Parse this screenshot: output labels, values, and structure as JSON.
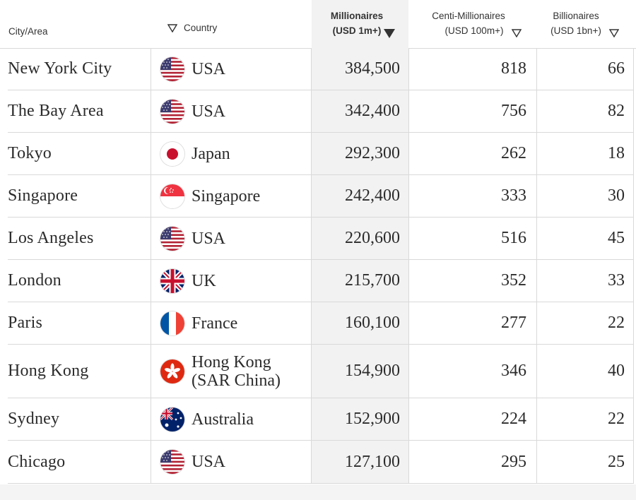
{
  "header": {
    "city_label": "City/Area",
    "country_label": "Country",
    "millionaires_label_1": "Millionaires",
    "millionaires_label_2": "(USD 1m+)",
    "centi_label_1": "Centi-Millionaires",
    "centi_label_2": "(USD 100m+)",
    "billionaires_label_1": "Billionaires",
    "billionaires_label_2": "(USD 1bn+)",
    "sort_column": "Millionaires",
    "sort_direction": "descending"
  },
  "rows": [
    {
      "city": "New York City",
      "country": "USA",
      "flag": "usa-flag-icon",
      "millionaires": "384,500",
      "centi": "818",
      "billionaires": "66"
    },
    {
      "city": "The Bay Area",
      "country": "USA",
      "flag": "usa-flag-icon",
      "millionaires": "342,400",
      "centi": "756",
      "billionaires": "82"
    },
    {
      "city": "Tokyo",
      "country": "Japan",
      "flag": "japan-flag-icon",
      "millionaires": "292,300",
      "centi": "262",
      "billionaires": "18"
    },
    {
      "city": "Singapore",
      "country": "Singapore",
      "flag": "singapore-flag-icon",
      "millionaires": "242,400",
      "centi": "333",
      "billionaires": "30"
    },
    {
      "city": "Los Angeles",
      "country": "USA",
      "flag": "usa-flag-icon",
      "millionaires": "220,600",
      "centi": "516",
      "billionaires": "45"
    },
    {
      "city": "London",
      "country": "UK",
      "flag": "uk-flag-icon",
      "millionaires": "215,700",
      "centi": "352",
      "billionaires": "33"
    },
    {
      "city": "Paris",
      "country": "France",
      "flag": "france-flag-icon",
      "millionaires": "160,100",
      "centi": "277",
      "billionaires": "22"
    },
    {
      "city": "Hong Kong",
      "country": "Hong Kong (SAR China)",
      "flag": "hong-kong-flag-icon",
      "millionaires": "154,900",
      "centi": "346",
      "billionaires": "40"
    },
    {
      "city": "Sydney",
      "country": "Australia",
      "flag": "australia-flag-icon",
      "millionaires": "152,900",
      "centi": "224",
      "billionaires": "22"
    },
    {
      "city": "Chicago",
      "country": "USA",
      "flag": "usa-flag-icon",
      "millionaires": "127,100",
      "centi": "295",
      "billionaires": "25"
    }
  ],
  "colors": {
    "text": "#2b2b2b",
    "sorted_column_bg": "#f2f2f2",
    "divider": "#d9d9d9"
  }
}
